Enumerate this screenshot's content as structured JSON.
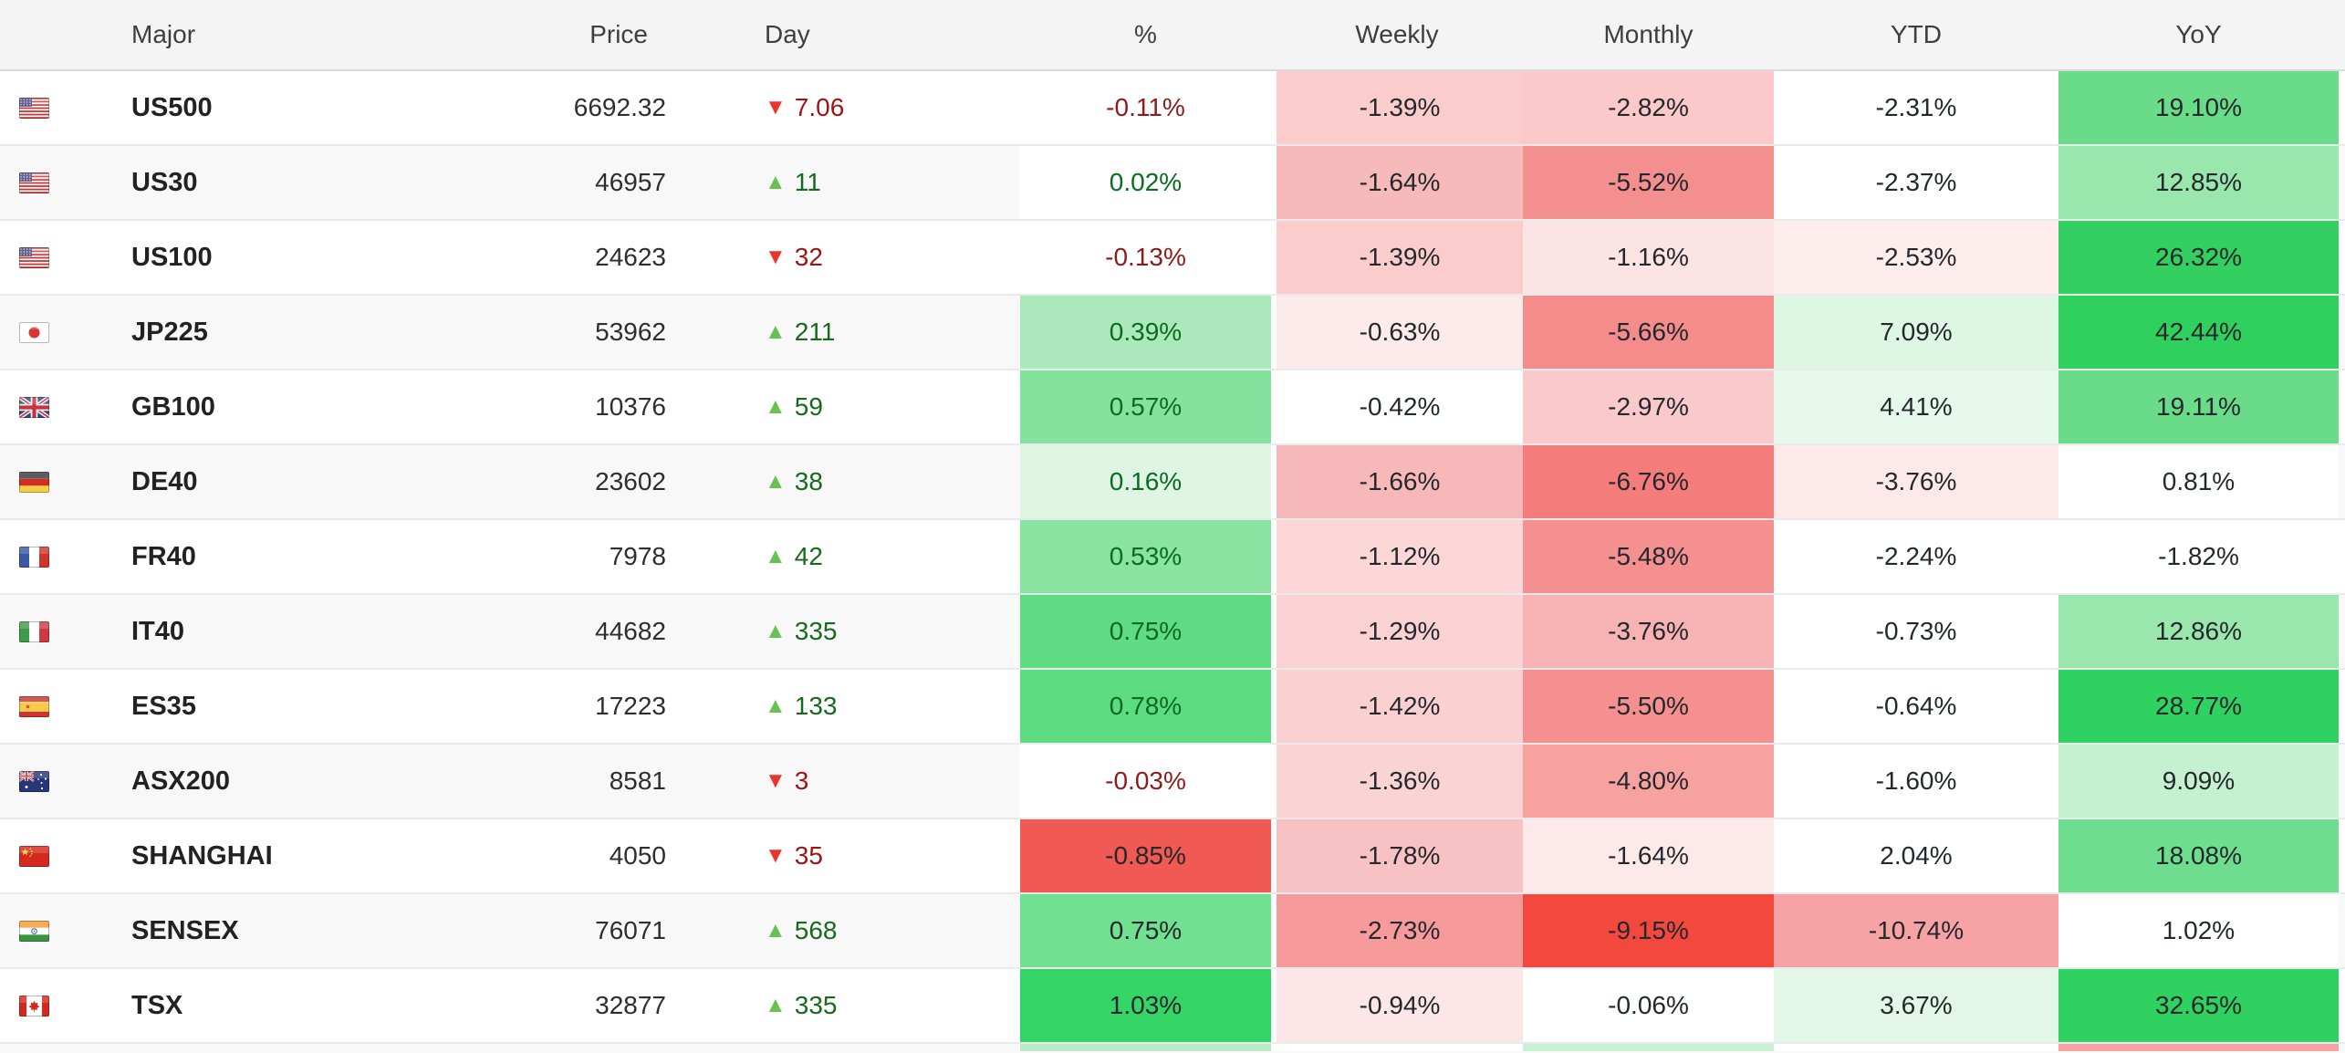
{
  "header": {
    "columns": [
      {
        "key": "major",
        "label": "Major"
      },
      {
        "key": "price",
        "label": "Price"
      },
      {
        "key": "day",
        "label": "Day"
      },
      {
        "key": "pct",
        "label": "%"
      },
      {
        "key": "weekly",
        "label": "Weekly"
      },
      {
        "key": "monthly",
        "label": "Monthly"
      },
      {
        "key": "ytd",
        "label": "YTD"
      },
      {
        "key": "yoy",
        "label": "YoY"
      }
    ]
  },
  "palette": {
    "header_bg": "#f4f4f5",
    "row_alt_bg": "#f8f8f9",
    "row_border": "#e9eaeb",
    "heat_text": "#24282d",
    "pct_pos_text": "#0b6b20",
    "pct_neg_text": "#8e1b1b",
    "day_up_triangle": "#68c253",
    "day_up_text": "#17691d",
    "day_down_triangle": "#e9352b",
    "day_down_text": "#9e1414"
  },
  "rows": [
    {
      "flag": "us",
      "symbol": "US500",
      "price": "6692.32",
      "day": {
        "dir": "down",
        "value": "7.06"
      },
      "pct": {
        "t": "-0.11%",
        "bg": "",
        "fg": "neg"
      },
      "weekly": {
        "t": "-1.39%",
        "bg": "#fbcccc"
      },
      "monthly": {
        "t": "-2.82%",
        "bg": "#fbc9c9"
      },
      "ytd": {
        "t": "-2.31%",
        "bg": ""
      },
      "yoy": {
        "t": "19.10%",
        "bg": "#69db89"
      }
    },
    {
      "flag": "us",
      "symbol": "US30",
      "price": "46957",
      "day": {
        "dir": "up",
        "value": "11"
      },
      "pct": {
        "t": "0.02%",
        "bg": "",
        "fg": "pos"
      },
      "weekly": {
        "t": "-1.64%",
        "bg": "#f7babb"
      },
      "monthly": {
        "t": "-5.52%",
        "bg": "#f48f90"
      },
      "ytd": {
        "t": "-2.37%",
        "bg": ""
      },
      "yoy": {
        "t": "12.85%",
        "bg": "#9ae7ad"
      }
    },
    {
      "flag": "us",
      "symbol": "US100",
      "price": "24623",
      "day": {
        "dir": "down",
        "value": "32"
      },
      "pct": {
        "t": "-0.13%",
        "bg": "",
        "fg": "neg"
      },
      "weekly": {
        "t": "-1.39%",
        "bg": "#fbcccc"
      },
      "monthly": {
        "t": "-1.16%",
        "bg": "#fce4e4"
      },
      "ytd": {
        "t": "-2.53%",
        "bg": "#fdeded"
      },
      "yoy": {
        "t": "26.32%",
        "bg": "#33cf60"
      }
    },
    {
      "flag": "jp",
      "symbol": "JP225",
      "price": "53962",
      "day": {
        "dir": "up",
        "value": "211"
      },
      "pct": {
        "t": "0.39%",
        "bg": "#abe8bc",
        "fg": "pos"
      },
      "weekly": {
        "t": "-0.63%",
        "bg": "#fdeaea"
      },
      "monthly": {
        "t": "-5.66%",
        "bg": "#f58c8c"
      },
      "ytd": {
        "t": "7.09%",
        "bg": "#def6e4"
      },
      "yoy": {
        "t": "42.44%",
        "bg": "#30d05e"
      }
    },
    {
      "flag": "gb",
      "symbol": "GB100",
      "price": "10376",
      "day": {
        "dir": "up",
        "value": "59"
      },
      "pct": {
        "t": "0.57%",
        "bg": "#83e29e",
        "fg": "pos"
      },
      "weekly": {
        "t": "-0.42%",
        "bg": ""
      },
      "monthly": {
        "t": "-2.97%",
        "bg": "#fac9cb"
      },
      "ytd": {
        "t": "4.41%",
        "bg": "#e6f8eb"
      },
      "yoy": {
        "t": "19.11%",
        "bg": "#69db89"
      }
    },
    {
      "flag": "de",
      "symbol": "DE40",
      "price": "23602",
      "day": {
        "dir": "up",
        "value": "38"
      },
      "pct": {
        "t": "0.16%",
        "bg": "#def5e4",
        "fg": "pos"
      },
      "weekly": {
        "t": "-1.66%",
        "bg": "#f7b8b9"
      },
      "monthly": {
        "t": "-6.76%",
        "bg": "#f47d7c"
      },
      "ytd": {
        "t": "-3.76%",
        "bg": "#fde9e9"
      },
      "yoy": {
        "t": "0.81%",
        "bg": ""
      }
    },
    {
      "flag": "fr",
      "symbol": "FR40",
      "price": "7978",
      "day": {
        "dir": "up",
        "value": "42"
      },
      "pct": {
        "t": "0.53%",
        "bg": "#89e3a1",
        "fg": "pos"
      },
      "weekly": {
        "t": "-1.12%",
        "bg": "#fbd7d8"
      },
      "monthly": {
        "t": "-5.48%",
        "bg": "#f59090"
      },
      "ytd": {
        "t": "-2.24%",
        "bg": ""
      },
      "yoy": {
        "t": "-1.82%",
        "bg": ""
      }
    },
    {
      "flag": "it",
      "symbol": "IT40",
      "price": "44682",
      "day": {
        "dir": "up",
        "value": "335"
      },
      "pct": {
        "t": "0.75%",
        "bg": "#5edb83",
        "fg": "pos"
      },
      "weekly": {
        "t": "-1.29%",
        "bg": "#fad2d3"
      },
      "monthly": {
        "t": "-3.76%",
        "bg": "#f7b3b4"
      },
      "ytd": {
        "t": "-0.73%",
        "bg": ""
      },
      "yoy": {
        "t": "12.86%",
        "bg": "#9ae7ad"
      }
    },
    {
      "flag": "es",
      "symbol": "ES35",
      "price": "17223",
      "day": {
        "dir": "up",
        "value": "133"
      },
      "pct": {
        "t": "0.78%",
        "bg": "#5cdb81",
        "fg": "pos"
      },
      "weekly": {
        "t": "-1.42%",
        "bg": "#fad0d1"
      },
      "monthly": {
        "t": "-5.50%",
        "bg": "#f59090"
      },
      "ytd": {
        "t": "-0.64%",
        "bg": ""
      },
      "yoy": {
        "t": "28.77%",
        "bg": "#2fd160"
      }
    },
    {
      "flag": "au",
      "symbol": "ASX200",
      "price": "8581",
      "day": {
        "dir": "down",
        "value": "3"
      },
      "pct": {
        "t": "-0.03%",
        "bg": "",
        "fg": "neg"
      },
      "weekly": {
        "t": "-1.36%",
        "bg": "#fad4d5"
      },
      "monthly": {
        "t": "-4.80%",
        "bg": "#f7a1a1"
      },
      "ytd": {
        "t": "-1.60%",
        "bg": ""
      },
      "yoy": {
        "t": "9.09%",
        "bg": "#c6f1d1"
      }
    },
    {
      "flag": "cn",
      "symbol": "SHANGHAI",
      "price": "4050",
      "day": {
        "dir": "down",
        "value": "35"
      },
      "pct": {
        "t": "-0.85%",
        "bg": "#f15a54",
        "fg": "dark"
      },
      "weekly": {
        "t": "-1.78%",
        "bg": "#f8c1c3"
      },
      "monthly": {
        "t": "-1.64%",
        "bg": "#fde9e9"
      },
      "ytd": {
        "t": "2.04%",
        "bg": ""
      },
      "yoy": {
        "t": "18.08%",
        "bg": "#6edd8f"
      }
    },
    {
      "flag": "in",
      "symbol": "SENSEX",
      "price": "76071",
      "day": {
        "dir": "up",
        "value": "568"
      },
      "pct": {
        "t": "0.75%",
        "bg": "#72e091",
        "fg": "dark"
      },
      "weekly": {
        "t": "-2.73%",
        "bg": "#f69a9c"
      },
      "monthly": {
        "t": "-9.15%",
        "bg": "#f3483e"
      },
      "ytd": {
        "t": "-10.74%",
        "bg": "#f7a2a4"
      },
      "yoy": {
        "t": "1.02%",
        "bg": ""
      }
    },
    {
      "flag": "ca",
      "symbol": "TSX",
      "price": "32877",
      "day": {
        "dir": "up",
        "value": "335"
      },
      "pct": {
        "t": "1.03%",
        "bg": "#35d466",
        "fg": "dark"
      },
      "weekly": {
        "t": "-0.94%",
        "bg": "#fde6e7"
      },
      "monthly": {
        "t": "-0.06%",
        "bg": ""
      },
      "ytd": {
        "t": "3.67%",
        "bg": "#e3f7e9"
      },
      "yoy": {
        "t": "32.65%",
        "bg": "#2fd160"
      }
    }
  ],
  "partial_row": {
    "pct_bg": "#b9ecc5",
    "weekly_bg": "",
    "monthly_bg": "#c8f1d3",
    "ytd_bg": "",
    "yoy_bg": "#f7a1a1"
  }
}
